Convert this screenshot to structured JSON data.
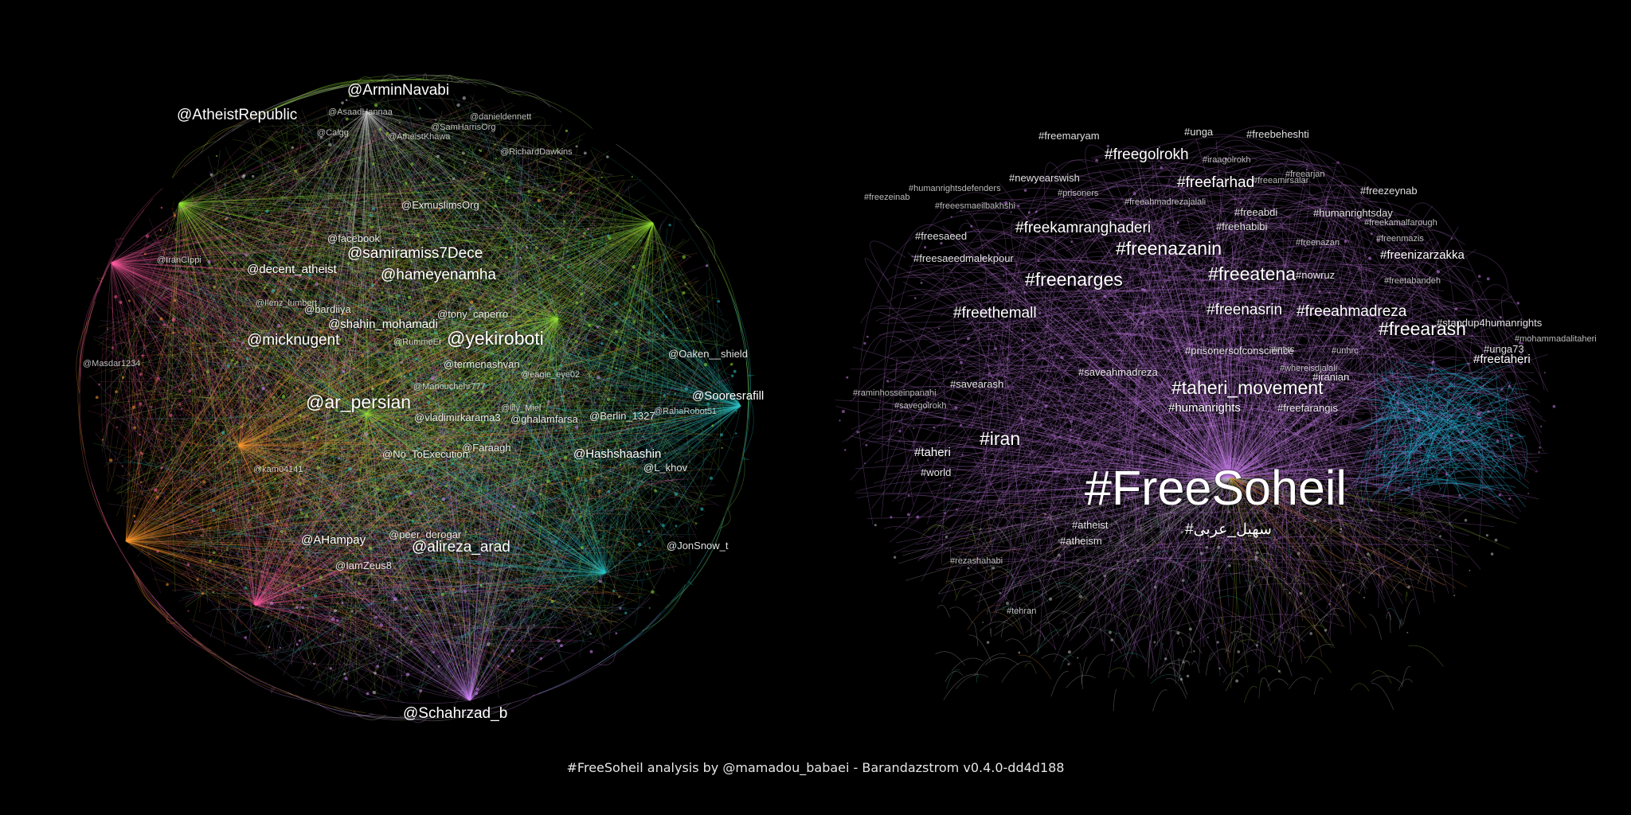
{
  "footer": "#FreeSoheil analysis by @mamadou_babaei - Barandazstrom v0.4.0-dd4d188",
  "networks": [
    {
      "name": "mentions-network",
      "clusters": [
        {
          "name": "pink",
          "color": "#ff5fa0"
        },
        {
          "name": "orange",
          "color": "#ff9a33"
        },
        {
          "name": "green",
          "color": "#96e23a"
        },
        {
          "name": "teal",
          "color": "#2fc7c9"
        },
        {
          "name": "violet",
          "color": "#d98cff"
        },
        {
          "name": "grey",
          "color": "#c9c9c9"
        }
      ],
      "labels": [
        {
          "text": "@ArminNavabi",
          "size": 4
        },
        {
          "text": "@AtheistRepublic",
          "size": 4
        },
        {
          "text": "@AsaadHannaa",
          "size": 1
        },
        {
          "text": "@danieldennett",
          "size": 1
        },
        {
          "text": "@Calgg",
          "size": 1
        },
        {
          "text": "@AtheistKhawa",
          "size": 1
        },
        {
          "text": "@SamHarrisOrg",
          "size": 1
        },
        {
          "text": "@RichardDawkins",
          "size": 1
        },
        {
          "text": "@ExmuslimsOrg",
          "size": 2
        },
        {
          "text": "@facebook",
          "size": 2
        },
        {
          "text": "@samiramiss7Dece",
          "size": 4
        },
        {
          "text": "@decent_atheist",
          "size": 3
        },
        {
          "text": "@hameyenamha",
          "size": 4
        },
        {
          "text": "@IranCIppi",
          "size": 1
        },
        {
          "text": "@bardiiya",
          "size": 2
        },
        {
          "text": "@tony_caperro",
          "size": 2
        },
        {
          "text": "@shahin_mohamadi",
          "size": 3
        },
        {
          "text": "@micknugent",
          "size": 4
        },
        {
          "text": "@yekiroboti",
          "size": 5
        },
        {
          "text": "@Oaken__shield",
          "size": 2
        },
        {
          "text": "@termenashvan",
          "size": 2
        },
        {
          "text": "@eagle_eye02",
          "size": 1
        },
        {
          "text": "@Manouchehr777",
          "size": 1
        },
        {
          "text": "@Sooresrafill",
          "size": 3
        },
        {
          "text": "@ar_persian",
          "size": 5
        },
        {
          "text": "@lily_Miel",
          "size": 1
        },
        {
          "text": "@vladimirkarama3",
          "size": 2
        },
        {
          "text": "@ghalamfarsa",
          "size": 2
        },
        {
          "text": "@Berlin_1327",
          "size": 2
        },
        {
          "text": "@RahaRobot51",
          "size": 1
        },
        {
          "text": "@Faraagh",
          "size": 2
        },
        {
          "text": "@No_ToExecution",
          "size": 2
        },
        {
          "text": "@Hashshaashin",
          "size": 3
        },
        {
          "text": "@L_khov",
          "size": 2
        },
        {
          "text": "@kam04141",
          "size": 1
        },
        {
          "text": "@peer_derogar",
          "size": 2
        },
        {
          "text": "@AHampay",
          "size": 3
        },
        {
          "text": "@alireza_arad",
          "size": 4
        },
        {
          "text": "@JonSnow_t",
          "size": 2
        },
        {
          "text": "@IamZeus8",
          "size": 2
        },
        {
          "text": "@Schahrzad_b",
          "size": 4
        },
        {
          "text": "@Masdar1234",
          "size": 1
        },
        {
          "text": "@Ilenz_lumbert",
          "size": 1
        },
        {
          "text": "@RummeEr",
          "size": 1
        }
      ]
    },
    {
      "name": "hashtags-network",
      "clusters": [
        {
          "name": "violet",
          "color": "#c67ee8"
        },
        {
          "name": "cyan",
          "color": "#1fb3d6"
        },
        {
          "name": "olive",
          "color": "#8fbf3a"
        },
        {
          "name": "orange",
          "color": "#e08a3c"
        },
        {
          "name": "teal",
          "color": "#28b39a"
        },
        {
          "name": "grey",
          "color": "#bdbdbd"
        }
      ],
      "labels": [
        {
          "text": "#freemaryam",
          "size": 2
        },
        {
          "text": "#unga",
          "size": 2
        },
        {
          "text": "#freebeheshti",
          "size": 2
        },
        {
          "text": "#freegolrokh",
          "size": 4
        },
        {
          "text": "#iraagolrokh",
          "size": 1
        },
        {
          "text": "#freeamirsalar",
          "size": 1
        },
        {
          "text": "#newyearswish",
          "size": 2
        },
        {
          "text": "#freefarhad",
          "size": 4
        },
        {
          "text": "#freearjan",
          "size": 1
        },
        {
          "text": "#freezeynab",
          "size": 2
        },
        {
          "text": "#freezeinab",
          "size": 1
        },
        {
          "text": "#humanrightsdefenders",
          "size": 1
        },
        {
          "text": "#prisoners",
          "size": 1
        },
        {
          "text": "#freeahmadrezajalali",
          "size": 1
        },
        {
          "text": "#freeesmaeilbakhshi",
          "size": 1
        },
        {
          "text": "#freeabdi",
          "size": 2
        },
        {
          "text": "#humanrightsday",
          "size": 2
        },
        {
          "text": "#freekamranghaderi",
          "size": 4
        },
        {
          "text": "#freehabibi",
          "size": 2
        },
        {
          "text": "#freekamalfarough",
          "size": 1
        },
        {
          "text": "#freesaeed",
          "size": 2
        },
        {
          "text": "#freenazanin",
          "size": 5
        },
        {
          "text": "#freenazan",
          "size": 1
        },
        {
          "text": "#freenmazis",
          "size": 1
        },
        {
          "text": "#freenizarzakka",
          "size": 3
        },
        {
          "text": "#freesaeedmalekpour",
          "size": 2
        },
        {
          "text": "#freenarges",
          "size": 5
        },
        {
          "text": "#freeatena",
          "size": 5
        },
        {
          "text": "#nowruz",
          "size": 2
        },
        {
          "text": "#freetabandeh",
          "size": 1
        },
        {
          "text": "#freeahmadreza",
          "size": 4
        },
        {
          "text": "#freenasrin",
          "size": 4
        },
        {
          "text": "#freethemall",
          "size": 4
        },
        {
          "text": "#standup4humanrights",
          "size": 2
        },
        {
          "text": "#mohammadalitaheri",
          "size": 1
        },
        {
          "text": "#freearash",
          "size": 5
        },
        {
          "text": "#prisonersofconscience",
          "size": 2
        },
        {
          "text": "#intirc",
          "size": 1
        },
        {
          "text": "#unhrc",
          "size": 1
        },
        {
          "text": "#freetaheri",
          "size": 3
        },
        {
          "text": "#unga73",
          "size": 2
        },
        {
          "text": "#whereisdjalali",
          "size": 1
        },
        {
          "text": "#saveahmadreza",
          "size": 2
        },
        {
          "text": "#taheri_movement",
          "size": 5
        },
        {
          "text": "#iranian",
          "size": 2
        },
        {
          "text": "#raminhosseinpanahi",
          "size": 1
        },
        {
          "text": "#savearash",
          "size": 2
        },
        {
          "text": "#humanrights",
          "size": 3
        },
        {
          "text": "#freefarangis",
          "size": 2
        },
        {
          "text": "#savegolrokh",
          "size": 1
        },
        {
          "text": "#iran",
          "size": 5
        },
        {
          "text": "#taheri",
          "size": 3
        },
        {
          "text": "#world",
          "size": 2
        },
        {
          "text": "#FreeSoheil",
          "size": 7
        },
        {
          "text": "#atheist",
          "size": 2
        },
        {
          "text": "#atheism",
          "size": 2
        },
        {
          "text": "#سهيل_عربى",
          "size": 4
        },
        {
          "text": "#rezashahabi",
          "size": 1
        },
        {
          "text": "#tehran",
          "size": 1
        }
      ]
    }
  ]
}
